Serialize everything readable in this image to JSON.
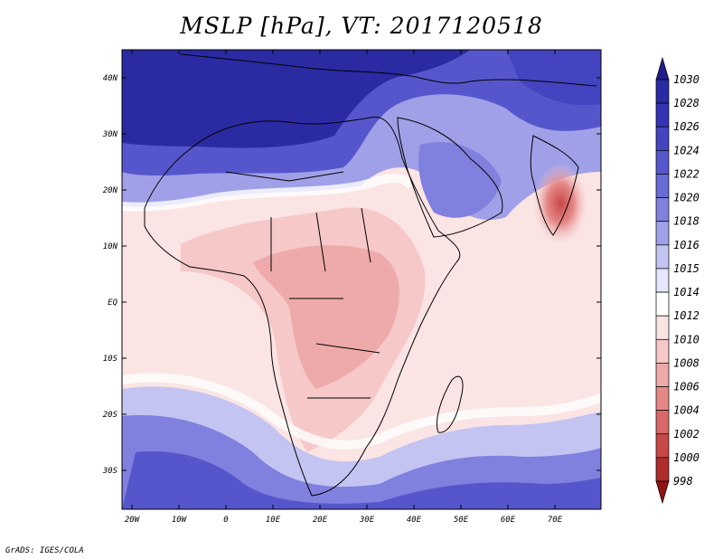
{
  "title": "MSLP [hPa], VT: 2017120518",
  "credit": "GrADS: IGES/COLA",
  "lat_labels": [
    "40N",
    "30N",
    "20N",
    "10N",
    "EQ",
    "10S",
    "20S",
    "30S"
  ],
  "lon_labels": [
    "20W",
    "10W",
    "0",
    "10E",
    "20E",
    "30E",
    "40E",
    "50E",
    "60E",
    "70E"
  ],
  "colorbar": {
    "levels": [
      "1030",
      "1028",
      "1026",
      "1024",
      "1022",
      "1020",
      "1018",
      "1016",
      "1015",
      "1014",
      "1012",
      "1010",
      "1008",
      "1006",
      "1004",
      "1002",
      "1000",
      "998"
    ],
    "colors": [
      "#201c8c",
      "#2a2aa2",
      "#3434b2",
      "#4444c0",
      "#5656cc",
      "#6a6ad6",
      "#8080de",
      "#a0a0e8",
      "#c4c4f2",
      "#e6e6fa",
      "#ffffff",
      "#fbe4e4",
      "#f6c8c8",
      "#eeaaaa",
      "#e48888",
      "#d86868",
      "#c84848",
      "#b02c2c",
      "#901414"
    ]
  },
  "chart_data": {
    "type": "heatmap",
    "title": "MSLP [hPa], VT: 2017120518",
    "variable": "Mean sea level pressure",
    "units": "hPa",
    "valid_time": "2017120518",
    "lon_range": [
      -22,
      80
    ],
    "lat_range": [
      -37,
      45
    ],
    "scale_min": 998,
    "scale_max": 1030
  }
}
